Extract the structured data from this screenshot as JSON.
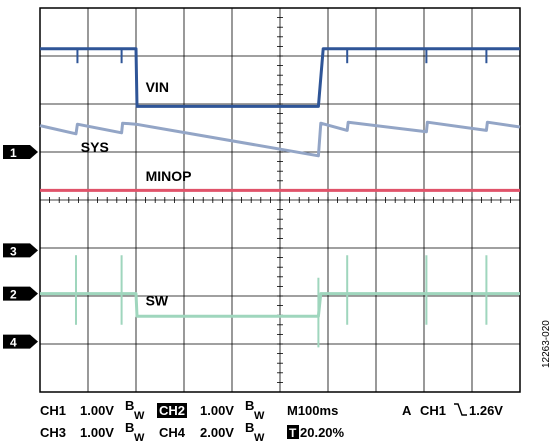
{
  "chart_data": {
    "type": "line",
    "grid": true,
    "divisions": {
      "x": 10,
      "y": 8
    },
    "x_unit": "div",
    "y_unit": "div",
    "series": [
      {
        "name": "VIN",
        "channel": "CH2",
        "color": "#2f5597",
        "x": [
          0,
          1.0,
          2.0,
          2.02,
          5.8,
          5.9,
          10
        ],
        "y": [
          7.15,
          7.15,
          7.15,
          5.95,
          5.95,
          7.15,
          7.15
        ],
        "spikes": [
          0.78,
          1.7,
          6.4,
          8.05,
          9.3
        ],
        "spike_depth": 0.3
      },
      {
        "name": "SYS",
        "channel": "CH1",
        "color": "#93a5c6",
        "x": [
          0,
          0.75,
          0.78,
          1.7,
          1.72,
          2.0,
          5.8,
          5.85,
          6.4,
          6.42,
          8.05,
          8.07,
          9.3,
          9.32,
          10
        ],
        "y": [
          5.55,
          5.38,
          5.58,
          5.4,
          5.6,
          5.58,
          4.92,
          5.6,
          5.45,
          5.62,
          5.42,
          5.62,
          5.45,
          5.62,
          5.52
        ]
      },
      {
        "name": "MINOP",
        "channel": "CH4",
        "color": "#e0536a",
        "x": [
          0,
          10
        ],
        "y": [
          4.2,
          4.2
        ]
      },
      {
        "name": "SW",
        "channel": "CH3",
        "color": "#9fd6bd",
        "x": [
          0,
          2.0,
          2.02,
          5.8,
          5.85,
          10
        ],
        "y": [
          2.05,
          2.05,
          1.58,
          1.58,
          2.05,
          2.05
        ],
        "spikes": [
          0.75,
          1.7,
          5.8,
          6.4,
          8.05,
          9.3
        ],
        "spike_up": 0.8,
        "spike_down": 0.65
      }
    ],
    "trace_labels": [
      {
        "text": "VIN",
        "x": 2.2,
        "y": 6.25
      },
      {
        "text": "SYS",
        "x": 0.85,
        "y": 5.0
      },
      {
        "text": "MINOP",
        "x": 2.2,
        "y": 4.4
      },
      {
        "text": "SW",
        "x": 2.2,
        "y": 1.8
      }
    ],
    "markers": [
      {
        "label": "1",
        "y": 5.0
      },
      {
        "label": "3",
        "y": 2.95
      },
      {
        "label": "2",
        "y": 2.05
      },
      {
        "label": "4",
        "y": 1.05
      }
    ],
    "readout": {
      "row1": {
        "ch1": "CH1",
        "ch1_val": "1.00V",
        "bw1": "B",
        "bw1_sub": "W",
        "ch2": "CH2",
        "ch2_val": "1.00V",
        "bw2": "B",
        "bw2_sub": "W",
        "timebase": "M100ms",
        "trigger_mode": "A",
        "trigger_ch": "CH1",
        "trigger_level": "1.26V"
      },
      "row2": {
        "ch3": "CH3",
        "ch3_val": "1.00V",
        "bw3": "B",
        "bw3_sub": "W",
        "ch4": "CH4",
        "ch4_val": "2.00V",
        "bw4": "B",
        "bw4_sub": "W",
        "trigger_pos_icon": "T",
        "trigger_pos": "20.20%"
      }
    }
  },
  "figure_id": "12263-020"
}
